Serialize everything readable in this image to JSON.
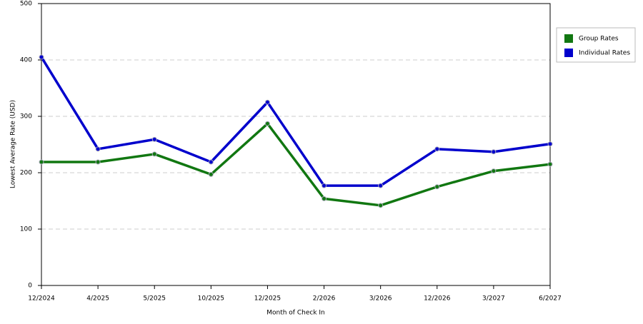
{
  "chart_data": {
    "type": "line",
    "x_label": "Month of Check In",
    "y_label": "Lowest Average Rate (USD)",
    "categories": [
      "12/2024",
      "4/2025",
      "5/2025",
      "10/2025",
      "12/2025",
      "2/2026",
      "3/2026",
      "12/2026",
      "3/2027",
      "6/2027"
    ],
    "series": [
      {
        "name": "Group Rates",
        "color": "#117711",
        "values": [
          219,
          219,
          233,
          197,
          287,
          154,
          142,
          175,
          203,
          215
        ]
      },
      {
        "name": "Individual Rates",
        "color": "#0000cc",
        "values": [
          405,
          242,
          259,
          219,
          325,
          177,
          177,
          242,
          237,
          251
        ]
      }
    ],
    "ylim": [
      0,
      500
    ],
    "yticks": [
      0,
      100,
      200,
      300,
      400,
      500
    ],
    "grid": true,
    "legend": "right"
  }
}
